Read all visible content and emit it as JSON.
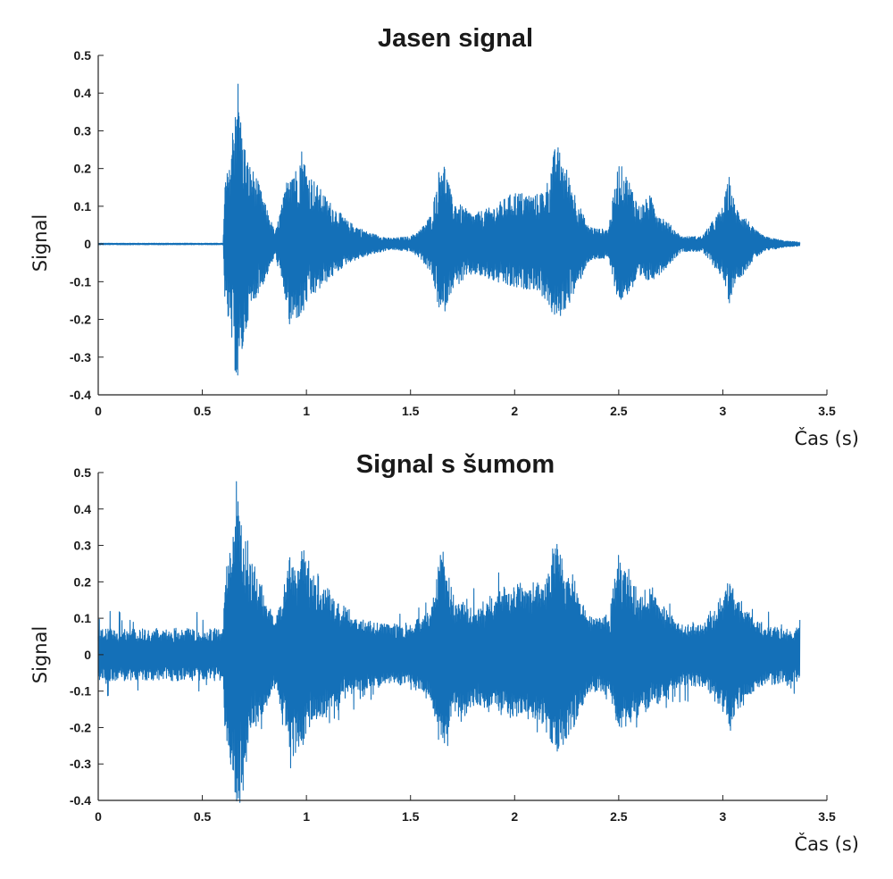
{
  "chart_data": [
    {
      "type": "line",
      "title": "Jasen signal",
      "xlabel": "Čas (s)",
      "ylabel": "Signal",
      "xlim": [
        0,
        3.5
      ],
      "ylim": [
        -0.4,
        0.5
      ],
      "xticks": [
        "0",
        "0.5",
        "1",
        "1.5",
        "2",
        "2.5",
        "3",
        "3.5"
      ],
      "yticks": [
        "-0.4",
        "-0.3",
        "-0.2",
        "-0.1",
        "0",
        "0.1",
        "0.2",
        "0.3",
        "0.4",
        "0.5"
      ],
      "grid": false,
      "color": "#1470b8",
      "series": [
        {
          "noise_level": 0,
          "x": [
            0,
            0.2,
            0.4,
            0.6,
            0.61,
            0.63,
            0.66,
            0.67,
            0.69,
            0.72,
            0.76,
            0.8,
            0.85,
            0.9,
            0.92,
            0.95,
            0.98,
            1.0,
            1.1,
            1.2,
            1.3,
            1.4,
            1.5,
            1.55,
            1.6,
            1.65,
            1.67,
            1.7,
            1.75,
            1.8,
            1.9,
            2.0,
            2.1,
            2.15,
            2.2,
            2.25,
            2.3,
            2.35,
            2.4,
            2.45,
            2.5,
            2.55,
            2.6,
            2.65,
            2.7,
            2.75,
            2.8,
            2.9,
            3.0,
            3.03,
            3.06,
            3.1,
            3.15,
            3.2,
            3.3,
            3.37
          ],
          "upper": [
            0.002,
            0.002,
            0.002,
            0.002,
            0.18,
            0.2,
            0.42,
            0.45,
            0.3,
            0.22,
            0.18,
            0.11,
            0.03,
            0.15,
            0.23,
            0.2,
            0.26,
            0.2,
            0.12,
            0.06,
            0.03,
            0.015,
            0.02,
            0.04,
            0.08,
            0.24,
            0.2,
            0.12,
            0.1,
            0.08,
            0.1,
            0.14,
            0.13,
            0.15,
            0.27,
            0.2,
            0.12,
            0.05,
            0.04,
            0.04,
            0.22,
            0.17,
            0.1,
            0.13,
            0.08,
            0.05,
            0.02,
            0.02,
            0.1,
            0.18,
            0.1,
            0.08,
            0.04,
            0.02,
            0.008,
            0.005
          ],
          "lower": [
            -0.002,
            -0.002,
            -0.002,
            -0.002,
            -0.18,
            -0.22,
            -0.35,
            -0.38,
            -0.3,
            -0.2,
            -0.14,
            -0.1,
            -0.03,
            -0.15,
            -0.23,
            -0.2,
            -0.2,
            -0.16,
            -0.1,
            -0.05,
            -0.03,
            -0.015,
            -0.02,
            -0.04,
            -0.08,
            -0.21,
            -0.17,
            -0.12,
            -0.1,
            -0.08,
            -0.1,
            -0.12,
            -0.12,
            -0.15,
            -0.21,
            -0.17,
            -0.12,
            -0.05,
            -0.04,
            -0.04,
            -0.16,
            -0.13,
            -0.1,
            -0.1,
            -0.08,
            -0.05,
            -0.02,
            -0.02,
            -0.09,
            -0.16,
            -0.1,
            -0.08,
            -0.04,
            -0.02,
            -0.008,
            -0.005
          ]
        }
      ]
    },
    {
      "type": "line",
      "title": "Signal s šumom",
      "xlabel": "Čas (s)",
      "ylabel": "Signal",
      "xlim": [
        0,
        3.5
      ],
      "ylim": [
        -0.4,
        0.5
      ],
      "xticks": [
        "0",
        "0.5",
        "1",
        "1.5",
        "2",
        "2.5",
        "3",
        "3.5"
      ],
      "yticks": [
        "-0.4",
        "-0.3",
        "-0.2",
        "-0.1",
        "0",
        "0.1",
        "0.2",
        "0.3",
        "0.4",
        "0.5"
      ],
      "grid": false,
      "color": "#1470b8",
      "series": [
        {
          "noise_level": 0.07,
          "x": [
            0,
            0.2,
            0.4,
            0.6,
            0.61,
            0.63,
            0.66,
            0.67,
            0.69,
            0.72,
            0.76,
            0.8,
            0.85,
            0.9,
            0.92,
            0.95,
            0.98,
            1.0,
            1.1,
            1.2,
            1.3,
            1.4,
            1.5,
            1.55,
            1.6,
            1.65,
            1.67,
            1.7,
            1.75,
            1.8,
            1.9,
            2.0,
            2.1,
            2.15,
            2.2,
            2.25,
            2.3,
            2.35,
            2.4,
            2.45,
            2.5,
            2.55,
            2.6,
            2.65,
            2.7,
            2.75,
            2.8,
            2.9,
            3.0,
            3.03,
            3.06,
            3.1,
            3.15,
            3.2,
            3.3,
            3.37
          ],
          "upper": [
            0.002,
            0.002,
            0.002,
            0.002,
            0.18,
            0.2,
            0.42,
            0.45,
            0.3,
            0.22,
            0.18,
            0.11,
            0.03,
            0.15,
            0.23,
            0.2,
            0.26,
            0.2,
            0.12,
            0.06,
            0.03,
            0.015,
            0.02,
            0.04,
            0.08,
            0.24,
            0.2,
            0.12,
            0.1,
            0.08,
            0.1,
            0.14,
            0.13,
            0.15,
            0.27,
            0.2,
            0.12,
            0.05,
            0.04,
            0.04,
            0.22,
            0.17,
            0.1,
            0.13,
            0.08,
            0.05,
            0.02,
            0.02,
            0.1,
            0.18,
            0.1,
            0.08,
            0.04,
            0.02,
            0.008,
            0.005
          ],
          "lower": [
            -0.002,
            -0.002,
            -0.002,
            -0.002,
            -0.18,
            -0.22,
            -0.35,
            -0.38,
            -0.3,
            -0.2,
            -0.14,
            -0.1,
            -0.03,
            -0.15,
            -0.23,
            -0.2,
            -0.2,
            -0.16,
            -0.1,
            -0.05,
            -0.03,
            -0.015,
            -0.02,
            -0.04,
            -0.08,
            -0.21,
            -0.17,
            -0.12,
            -0.1,
            -0.08,
            -0.1,
            -0.12,
            -0.12,
            -0.15,
            -0.21,
            -0.17,
            -0.12,
            -0.05,
            -0.04,
            -0.04,
            -0.16,
            -0.13,
            -0.1,
            -0.1,
            -0.08,
            -0.05,
            -0.02,
            -0.02,
            -0.09,
            -0.16,
            -0.1,
            -0.08,
            -0.04,
            -0.02,
            -0.008,
            -0.005
          ]
        }
      ]
    }
  ]
}
